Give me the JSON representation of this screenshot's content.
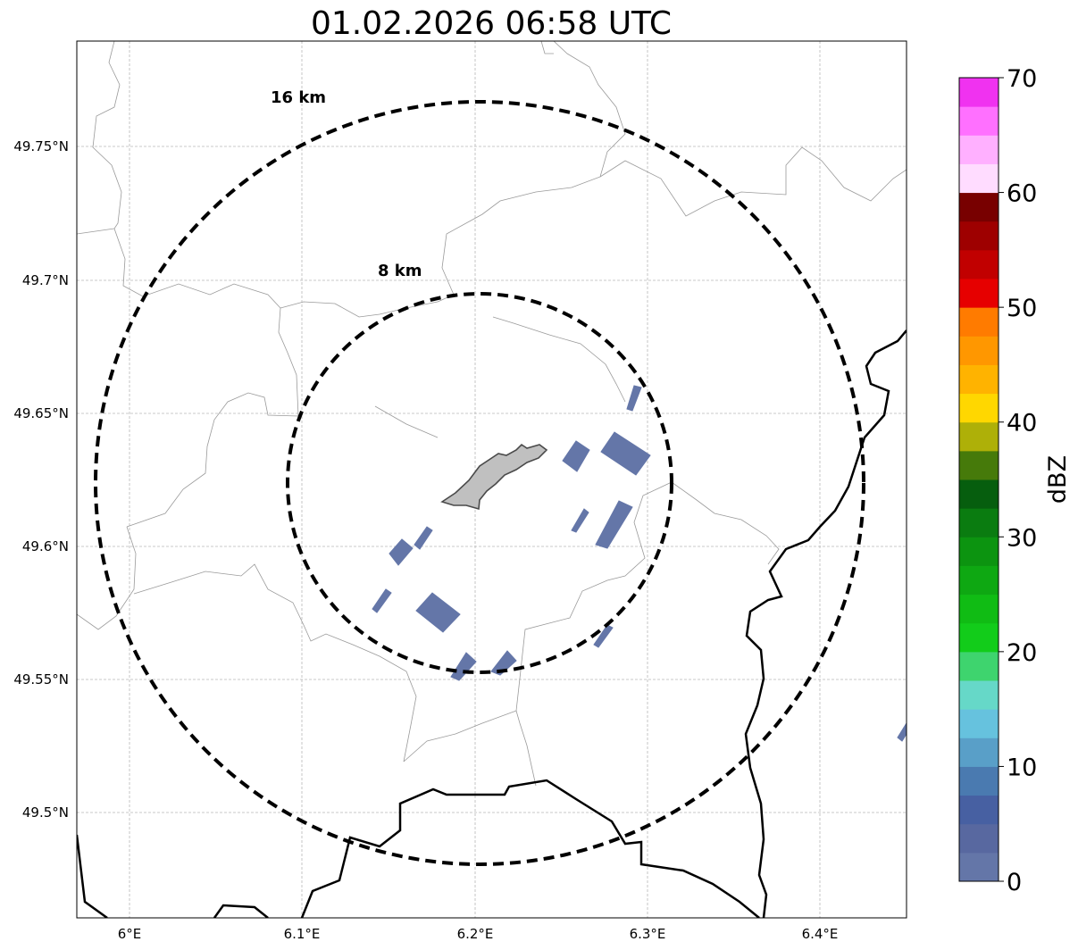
{
  "title": "01.02.2026 06:58 UTC",
  "x_ticks": [
    "6°E",
    "6.1°E",
    "6.2°E",
    "6.3°E",
    "6.4°E"
  ],
  "y_ticks": [
    "49.75°N",
    "49.7°N",
    "49.65°N",
    "49.6°N",
    "49.55°N",
    "49.5°N"
  ],
  "range_rings": [
    {
      "label": "16 km",
      "radius_km": 16
    },
    {
      "label": "8 km",
      "radius_km": 8
    }
  ],
  "colorbar": {
    "label": "dBZ",
    "min": 0,
    "max": 70,
    "ticks": [
      "0",
      "10",
      "20",
      "30",
      "40",
      "50",
      "60",
      "70"
    ],
    "step_dbz": 2.5,
    "colors": [
      "#6476a8",
      "#5868a0",
      "#4760a2",
      "#4a7ab0",
      "#599fc8",
      "#66c2de",
      "#66d8c8",
      "#3ed46e",
      "#12cc1a",
      "#10bc14",
      "#0ea812",
      "#0c9410",
      "#0a7c10",
      "#065e0e",
      "#467a0a",
      "#aeb008",
      "#ffd700",
      "#ffb300",
      "#ff9700",
      "#ff7b00",
      "#e60000",
      "#c10000",
      "#9e0000",
      "#780000",
      "#ffdcff",
      "#ffb0ff",
      "#ff70ff",
      "#f032f0"
    ]
  },
  "map_colors": {
    "echo": "#6476a8",
    "city": "#c0c0c0",
    "border": "#000000",
    "admin": "#9a9a9a",
    "grid": "#b8b8b8"
  }
}
